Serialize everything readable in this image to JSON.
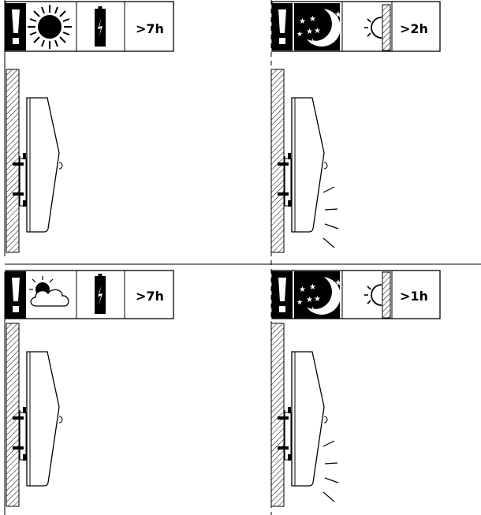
{
  "panels": [
    {
      "id": "day-sun",
      "condition": "sunny day",
      "light_on": false,
      "hours": ">7h"
    },
    {
      "id": "night-light",
      "condition": "night",
      "light_on": true,
      "hours": ">2h"
    },
    {
      "id": "day-cloudy",
      "condition": "cloudy day",
      "light_on": false,
      "hours": ">7h"
    },
    {
      "id": "night-light-2",
      "condition": "night",
      "light_on": true,
      "hours": ">1h"
    }
  ],
  "icons": {
    "warning": "exclamation-icon",
    "sun": "sun-icon",
    "moon": "moon-stars-icon",
    "cloud": "sun-cloud-icon",
    "battery": "battery-charging-icon",
    "lamp": "wall-lamp-icon"
  },
  "colors": {
    "ink": "#000000",
    "background": "#ffffff"
  }
}
